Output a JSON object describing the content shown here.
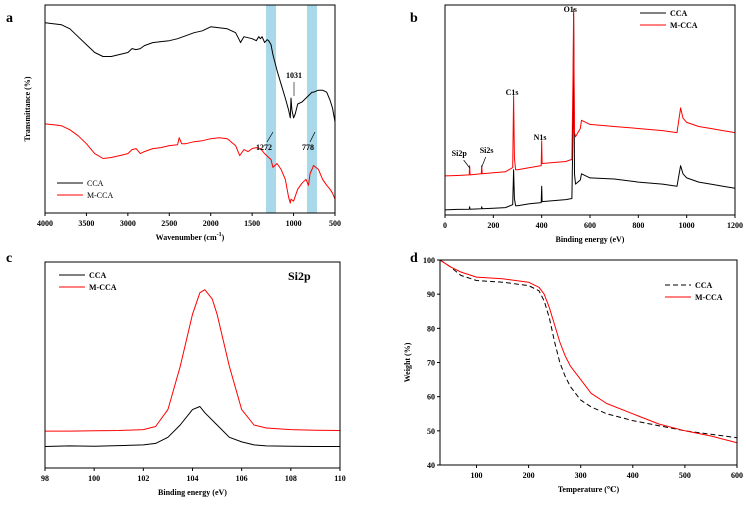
{
  "chart_data": [
    {
      "type": "line",
      "panel": "a",
      "title": "",
      "xlabel": "Wavenumber (cm",
      "xlabel_sup": "-1",
      "xlabel_tail": ")",
      "ylabel": "Transmittance (%)",
      "xlim": [
        4000,
        500
      ],
      "xticks": [
        "4000",
        "3500",
        "3000",
        "2500",
        "2000",
        "1500",
        "1000",
        "500"
      ],
      "highlights": [
        1272,
        778
      ],
      "annotations": [
        "1031",
        "1272",
        "778"
      ],
      "legend": {
        "position": "bottom-left",
        "entries": [
          "CCA",
          "M-CCA"
        ]
      },
      "series": [
        {
          "name": "CCA",
          "color": "#000000",
          "x": [
            4000,
            3900,
            3800,
            3700,
            3600,
            3500,
            3400,
            3300,
            3200,
            3100,
            3000,
            2950,
            2900,
            2850,
            2800,
            2700,
            2600,
            2500,
            2400,
            2300,
            2200,
            2100,
            2000,
            1900,
            1800,
            1700,
            1650,
            1640,
            1600,
            1550,
            1500,
            1450,
            1420,
            1400,
            1380,
            1350,
            1320,
            1300,
            1272,
            1250,
            1200,
            1150,
            1100,
            1060,
            1040,
            1031,
            1020,
            1000,
            980,
            950,
            900,
            850,
            800,
            778,
            760,
            700,
            650,
            600,
            560,
            530,
            500
          ],
          "y": [
            96,
            95.5,
            95,
            93,
            89,
            85,
            81,
            79,
            79,
            80,
            81,
            83,
            82.5,
            83,
            84.5,
            86,
            86.5,
            87,
            88,
            89.5,
            91,
            92,
            94,
            93.5,
            93,
            91,
            87,
            86,
            89,
            88.5,
            88,
            87,
            89,
            88,
            89,
            86,
            87.5,
            87,
            85,
            80,
            72,
            65,
            58,
            52,
            48,
            58,
            52,
            48,
            50,
            55,
            56,
            58,
            60,
            61,
            61,
            62,
            62,
            61,
            57,
            53,
            46
          ]
        },
        {
          "name": "M-CCA",
          "color": "#ff0000",
          "x": [
            4000,
            3900,
            3800,
            3700,
            3600,
            3500,
            3400,
            3300,
            3200,
            3100,
            3000,
            2950,
            2900,
            2850,
            2800,
            2700,
            2600,
            2500,
            2400,
            2380,
            2350,
            2300,
            2200,
            2100,
            2000,
            1900,
            1800,
            1700,
            1650,
            1600,
            1550,
            1500,
            1450,
            1400,
            1350,
            1300,
            1272,
            1250,
            1200,
            1150,
            1100,
            1060,
            1040,
            1031,
            1000,
            950,
            900,
            850,
            820,
            800,
            778,
            760,
            700,
            650,
            600,
            560,
            530,
            500
          ],
          "y": [
            45,
            44.5,
            44,
            42,
            39,
            35,
            30,
            27.5,
            28,
            29,
            30,
            32,
            32.5,
            30,
            31,
            32.5,
            33,
            34,
            34.5,
            38,
            35,
            35,
            36,
            36.5,
            37.5,
            38,
            37.5,
            34,
            29,
            32,
            31,
            32.5,
            33,
            32.5,
            30,
            28,
            27,
            23,
            25,
            22,
            17,
            8,
            5,
            7,
            6,
            12,
            15,
            17,
            14,
            20,
            22,
            24,
            22,
            17,
            14,
            12,
            10,
            7
          ]
        }
      ]
    },
    {
      "type": "line",
      "panel": "b",
      "title": "",
      "xlabel": "Binding energy (eV)",
      "ylabel": "",
      "xlim": [
        0,
        1200
      ],
      "xticks": [
        "0",
        "200",
        "400",
        "600",
        "800",
        "1000",
        "1200"
      ],
      "annotations": [
        "O1s",
        "C1s",
        "N1s",
        "Si2p",
        "Si2s"
      ],
      "legend": {
        "position": "top-right",
        "entries": [
          "CCA",
          "M-CCA"
        ]
      },
      "series": [
        {
          "name": "CCA",
          "color": "#000000",
          "x": [
            0,
            50,
            100,
            102,
            104,
            150,
            152,
            154,
            200,
            250,
            280,
            284,
            287,
            292,
            300,
            350,
            398,
            400,
            402,
            450,
            500,
            525,
            530,
            532,
            536,
            540,
            560,
            565,
            600,
            700,
            800,
            900,
            960,
            975,
            985,
            1000,
            1050,
            1100,
            1150,
            1200
          ],
          "y": [
            2.5,
            2.7,
            2.8,
            4,
            2.8,
            3,
            4,
            3,
            3.3,
            3.6,
            5,
            22,
            8,
            4.5,
            4.5,
            5.5,
            6,
            14,
            6.5,
            7,
            7.5,
            8,
            46,
            98,
            20,
            15,
            17,
            20,
            18,
            17.5,
            16,
            15,
            14,
            24,
            20,
            18,
            16,
            15,
            14,
            13
          ]
        },
        {
          "name": "M-CCA",
          "color": "#ff0000",
          "x": [
            0,
            50,
            100,
            102,
            104,
            150,
            152,
            154,
            200,
            250,
            280,
            284,
            287,
            292,
            300,
            350,
            398,
            400,
            402,
            450,
            500,
            525,
            530,
            532,
            536,
            540,
            560,
            565,
            600,
            700,
            800,
            900,
            960,
            975,
            985,
            1000,
            1050,
            1100,
            1150,
            1200
          ],
          "y": [
            19,
            19.2,
            19.5,
            24,
            19.5,
            20,
            24,
            20,
            20.5,
            21,
            23,
            58,
            28,
            22,
            22,
            23,
            24,
            36,
            25,
            25.5,
            26,
            27,
            70,
            100,
            40,
            38,
            42,
            46,
            44,
            43,
            42,
            41,
            40,
            52,
            47,
            45,
            43,
            42,
            41,
            40
          ]
        }
      ]
    },
    {
      "type": "line",
      "panel": "c",
      "title": "Si2p",
      "xlabel": "Binding energy (eV)",
      "ylabel": "",
      "xlim": [
        98,
        110
      ],
      "xticks": [
        "98",
        "100",
        "102",
        "104",
        "106",
        "108",
        "110"
      ],
      "legend": {
        "position": "top-left",
        "entries": [
          "CCA",
          "M-CCA"
        ]
      },
      "series": [
        {
          "name": "CCA",
          "color": "#000000",
          "x": [
            98,
            99,
            100,
            101,
            102,
            102.5,
            103,
            103.5,
            104,
            104.3,
            104.5,
            105,
            105.5,
            106,
            106.5,
            107,
            108,
            109,
            110
          ],
          "y": [
            2,
            2.2,
            2.1,
            2.3,
            2.5,
            3,
            5,
            9,
            14,
            15,
            13,
            9,
            5,
            3.5,
            2.5,
            2.2,
            2.1,
            2,
            2
          ]
        },
        {
          "name": "M-CCA",
          "color": "#ff0000",
          "x": [
            98,
            99,
            100,
            101,
            102,
            102.5,
            103,
            103.5,
            104,
            104.3,
            104.5,
            104.8,
            105,
            105.5,
            106,
            106.5,
            107,
            108,
            109,
            110
          ],
          "y": [
            7,
            7,
            7.1,
            7.2,
            7.5,
            8.5,
            14,
            28,
            45,
            52,
            53,
            50,
            45,
            28,
            14,
            9,
            8,
            7.5,
            7.3,
            7.2
          ]
        }
      ]
    },
    {
      "type": "line",
      "panel": "d",
      "title": "",
      "xlabel": "Temperature (℃)",
      "ylabel": "Weight (%)",
      "xlim": [
        30,
        600
      ],
      "ylim": [
        40,
        100
      ],
      "xticks": [
        "100",
        "200",
        "300",
        "400",
        "500",
        "600"
      ],
      "yticks": [
        "40",
        "50",
        "60",
        "70",
        "80",
        "90",
        "100"
      ],
      "legend": {
        "position": "top-right",
        "entries": [
          "CCA",
          "M-CCA"
        ]
      },
      "series": [
        {
          "name": "CCA",
          "color": "#000000",
          "dashed": true,
          "x": [
            30,
            50,
            70,
            100,
            150,
            200,
            220,
            230,
            240,
            250,
            260,
            270,
            280,
            290,
            300,
            320,
            350,
            400,
            450,
            500,
            550,
            600
          ],
          "y": [
            100,
            98,
            95.5,
            94,
            93.5,
            92.5,
            91,
            88,
            83,
            76,
            70,
            66,
            63,
            61,
            59,
            57,
            55,
            53,
            51.5,
            50,
            49,
            48
          ]
        },
        {
          "name": "M-CCA",
          "color": "#ff0000",
          "dashed": false,
          "x": [
            30,
            50,
            70,
            100,
            150,
            200,
            220,
            230,
            240,
            250,
            260,
            270,
            280,
            290,
            300,
            320,
            350,
            400,
            450,
            500,
            550,
            600
          ],
          "y": [
            100,
            98,
            96.5,
            95,
            94.5,
            93.5,
            92,
            90,
            86,
            81,
            76,
            72,
            69,
            67,
            65,
            61,
            58,
            55,
            52,
            50,
            48.5,
            46.5
          ]
        }
      ]
    }
  ]
}
